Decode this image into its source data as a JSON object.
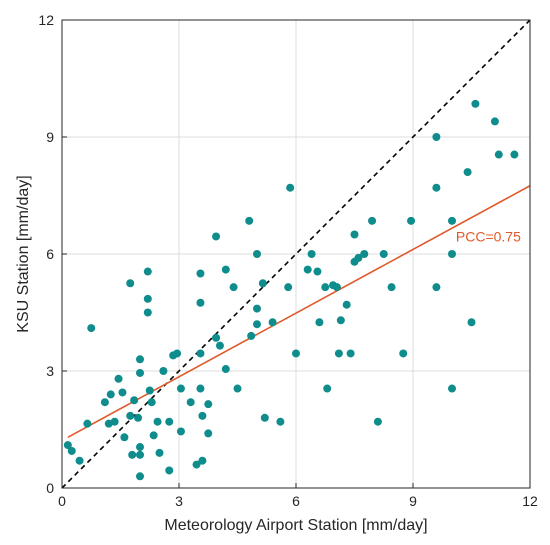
{
  "chart_data": {
    "type": "scatter",
    "xlabel": "Meteorology Airport Station [mm/day]",
    "ylabel": "KSU Station [mm/day]",
    "xlim": [
      0,
      12
    ],
    "ylim": [
      0,
      12
    ],
    "xticks": [
      0,
      3,
      6,
      9,
      12
    ],
    "yticks": [
      0,
      3,
      6,
      9,
      12
    ],
    "grid": true,
    "point_color": "#0f8c8c",
    "fit_color": "#e05a2b",
    "identity_line_color": "#000000",
    "points": [
      [
        0.15,
        1.1
      ],
      [
        0.25,
        0.95
      ],
      [
        0.45,
        0.7
      ],
      [
        0.65,
        1.65
      ],
      [
        0.75,
        4.1
      ],
      [
        1.1,
        2.2
      ],
      [
        1.2,
        1.65
      ],
      [
        1.25,
        2.4
      ],
      [
        1.35,
        1.7
      ],
      [
        1.45,
        2.8
      ],
      [
        1.55,
        2.45
      ],
      [
        1.6,
        1.3
      ],
      [
        1.75,
        5.25
      ],
      [
        1.75,
        1.85
      ],
      [
        1.8,
        0.85
      ],
      [
        1.85,
        2.25
      ],
      [
        1.95,
        1.8
      ],
      [
        2.0,
        3.3
      ],
      [
        2.0,
        2.95
      ],
      [
        2.0,
        1.05
      ],
      [
        2.0,
        0.85
      ],
      [
        2.0,
        0.3
      ],
      [
        2.2,
        5.55
      ],
      [
        2.2,
        4.85
      ],
      [
        2.2,
        4.5
      ],
      [
        2.25,
        2.5
      ],
      [
        2.3,
        2.2
      ],
      [
        2.35,
        1.35
      ],
      [
        2.45,
        1.7
      ],
      [
        2.5,
        0.9
      ],
      [
        2.6,
        3.0
      ],
      [
        2.75,
        1.7
      ],
      [
        2.75,
        0.45
      ],
      [
        2.85,
        3.4
      ],
      [
        2.95,
        3.45
      ],
      [
        3.05,
        2.55
      ],
      [
        3.05,
        1.45
      ],
      [
        3.3,
        2.2
      ],
      [
        3.45,
        0.6
      ],
      [
        3.55,
        5.5
      ],
      [
        3.55,
        4.75
      ],
      [
        3.55,
        3.45
      ],
      [
        3.55,
        2.55
      ],
      [
        3.6,
        1.85
      ],
      [
        3.6,
        0.7
      ],
      [
        3.75,
        2.15
      ],
      [
        3.75,
        1.4
      ],
      [
        3.95,
        6.45
      ],
      [
        3.95,
        3.85
      ],
      [
        4.05,
        3.65
      ],
      [
        4.2,
        5.6
      ],
      [
        4.2,
        3.05
      ],
      [
        4.4,
        5.15
      ],
      [
        4.5,
        2.55
      ],
      [
        4.8,
        6.85
      ],
      [
        4.85,
        3.9
      ],
      [
        5.0,
        6.0
      ],
      [
        5.0,
        4.6
      ],
      [
        5.0,
        4.2
      ],
      [
        5.15,
        5.25
      ],
      [
        5.2,
        1.8
      ],
      [
        5.4,
        4.25
      ],
      [
        5.6,
        1.7
      ],
      [
        5.8,
        5.15
      ],
      [
        5.85,
        7.7
      ],
      [
        6.0,
        3.45
      ],
      [
        6.3,
        5.6
      ],
      [
        6.4,
        6.0
      ],
      [
        6.55,
        5.55
      ],
      [
        6.6,
        4.25
      ],
      [
        6.75,
        5.15
      ],
      [
        6.8,
        2.55
      ],
      [
        6.95,
        5.2
      ],
      [
        7.05,
        5.15
      ],
      [
        7.1,
        3.45
      ],
      [
        7.15,
        4.3
      ],
      [
        7.3,
        4.7
      ],
      [
        7.4,
        3.45
      ],
      [
        7.5,
        6.5
      ],
      [
        7.5,
        5.8
      ],
      [
        7.6,
        5.9
      ],
      [
        7.75,
        6.0
      ],
      [
        7.95,
        6.85
      ],
      [
        8.1,
        1.7
      ],
      [
        8.25,
        6.0
      ],
      [
        8.45,
        5.15
      ],
      [
        8.75,
        3.45
      ],
      [
        8.95,
        6.85
      ],
      [
        9.6,
        9.0
      ],
      [
        9.6,
        7.7
      ],
      [
        9.6,
        5.15
      ],
      [
        10.0,
        6.85
      ],
      [
        10.0,
        6.0
      ],
      [
        10.0,
        2.55
      ],
      [
        10.4,
        8.1
      ],
      [
        10.5,
        4.25
      ],
      [
        10.6,
        9.85
      ],
      [
        11.1,
        9.4
      ],
      [
        11.2,
        8.55
      ],
      [
        11.6,
        8.55
      ]
    ],
    "fit_line": {
      "start": [
        0.15,
        1.3
      ],
      "end": [
        12.0,
        7.75
      ]
    },
    "identity_line": {
      "start": [
        0,
        0
      ],
      "end": [
        12,
        12
      ],
      "style": "dashed"
    },
    "annotation": {
      "text": "PCC=0.75",
      "at": [
        10.1,
        6.45
      ]
    }
  }
}
